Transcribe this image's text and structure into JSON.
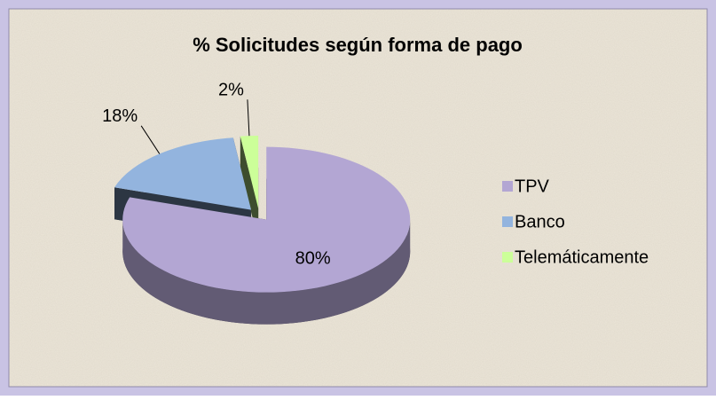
{
  "chart_data": {
    "type": "pie3d",
    "title": "% Solicitudes según forma de pago",
    "categories": [
      "TPV",
      "Banco",
      "Telemáticamente"
    ],
    "values": [
      80,
      18,
      2
    ],
    "value_labels": [
      "80%",
      "18%",
      "2%"
    ],
    "colors": [
      "#b3a6d3",
      "#93b4de",
      "#ccff99"
    ],
    "legend": "right"
  }
}
